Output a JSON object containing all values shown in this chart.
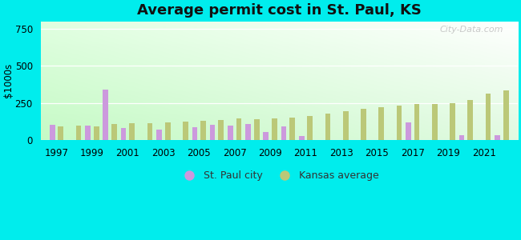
{
  "title": "Average permit cost in St. Paul, KS",
  "ylabel": "$1000s",
  "background_outer": "#00eded",
  "years": [
    1997,
    1998,
    1999,
    2000,
    2001,
    2002,
    2003,
    2004,
    2005,
    2006,
    2007,
    2008,
    2009,
    2010,
    2011,
    2012,
    2013,
    2014,
    2015,
    2016,
    2017,
    2018,
    2019,
    2020,
    2021,
    2022
  ],
  "st_paul": [
    100,
    0,
    95,
    340,
    80,
    0,
    70,
    0,
    85,
    100,
    95,
    110,
    55,
    90,
    25,
    0,
    0,
    0,
    0,
    0,
    120,
    0,
    0,
    35,
    0,
    35
  ],
  "kansas": [
    90,
    95,
    90,
    110,
    115,
    115,
    120,
    125,
    130,
    135,
    145,
    140,
    145,
    150,
    160,
    180,
    195,
    210,
    220,
    230,
    240,
    240,
    250,
    270,
    310,
    335
  ],
  "city_color": "#cc99dd",
  "ks_color": "#bbc878",
  "ylim": [
    0,
    800
  ],
  "yticks": [
    0,
    250,
    500,
    750
  ],
  "bar_width": 0.38,
  "title_fontsize": 13,
  "watermark": "City-Data.com"
}
